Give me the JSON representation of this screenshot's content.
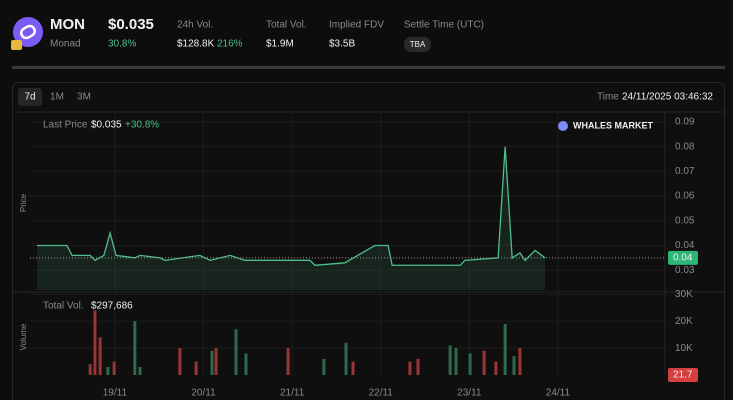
{
  "header": {
    "symbol": "MON",
    "name": "Monad",
    "price": "$0.035",
    "change": "30.8%",
    "stats": [
      {
        "label": "24h Vol.",
        "value": "$128.8K",
        "change": "216%"
      },
      {
        "label": "Total Vol.",
        "value": "$1.9M"
      },
      {
        "label": "Implied FDV",
        "value": "$3.5B"
      },
      {
        "label": "Settle Time (UTC)",
        "value": "TBA"
      }
    ]
  },
  "tabs": [
    "7d",
    "1M",
    "3M"
  ],
  "active_tab": 0,
  "time_label": "Time",
  "time": "24/11/2025 03:46:32",
  "price_chart": {
    "type": "line",
    "legend_label": "Last Price",
    "last_price": "$0.035",
    "last_change": "+30.8%",
    "brand": "WHALES MARKET",
    "y_label": "Price",
    "color": "#4fbf8a",
    "x": [
      2.9,
      11.0,
      12.4,
      17.3,
      18.6,
      21.0,
      22.7,
      24.3,
      29.4,
      30.8,
      36.2,
      37.6,
      47.0,
      49.8,
      55.2,
      59.2,
      76.8,
      78.2,
      86.3,
      94.4,
      98.0,
      99.1,
      117.5,
      118.8,
      127.8,
      129.7,
      131.6,
      133.7,
      135.1,
      137.8,
      140.5
    ],
    "values": [
      0.04,
      0.04,
      0.036,
      0.036,
      0.034,
      0.036,
      0.045,
      0.036,
      0.035,
      0.036,
      0.035,
      0.034,
      0.036,
      0.034,
      0.036,
      0.034,
      0.034,
      0.032,
      0.033,
      0.04,
      0.04,
      0.032,
      0.032,
      0.034,
      0.035,
      0.08,
      0.035,
      0.037,
      0.034,
      0.038,
      0.035
    ],
    "xlim": [
      1,
      173
    ],
    "ylim": [
      0.022,
      0.094
    ],
    "yticks": [
      0.03,
      0.04,
      0.05,
      0.06,
      0.07,
      0.08,
      0.09
    ],
    "xticks": [
      {
        "value": 24,
        "label": "19/11"
      },
      {
        "value": 48,
        "label": "20/11"
      },
      {
        "value": 72,
        "label": "21/11"
      },
      {
        "value": 96,
        "label": "22/11"
      },
      {
        "value": 120,
        "label": "23/11"
      },
      {
        "value": 144,
        "label": "24/11"
      }
    ],
    "current": {
      "value": 0.035,
      "label": "0.04"
    },
    "grid": true
  },
  "volume_chart": {
    "type": "bar",
    "legend_label": "Total Vol.",
    "total": "$297,686",
    "y_label": "Volume",
    "x": [
      17.3,
      18.6,
      20.0,
      22.1,
      23.8,
      29.4,
      30.8,
      41.6,
      46.0,
      50.3,
      51.4,
      56.8,
      59.5,
      70.9,
      80.6,
      86.6,
      88.5,
      103.9,
      106.1,
      114.8,
      116.4,
      120.2,
      124.0,
      127.2,
      129.7,
      132.1,
      133.7
    ],
    "values": [
      4000,
      24000,
      14000,
      3000,
      5000,
      20000,
      3000,
      10000,
      5000,
      9000,
      10000,
      17000,
      8000,
      10000,
      6000,
      12000,
      5000,
      5000,
      6000,
      11000,
      10000,
      8000,
      9000,
      5000,
      19000,
      7000,
      10000
    ],
    "colors": [
      "#9b3535",
      "#9b3535",
      "#9b3535",
      "#2e6b4a",
      "#9b3535",
      "#2e6b4a",
      "#2e6b4a",
      "#9b3535",
      "#9b3535",
      "#2e6b4a",
      "#9b3535",
      "#2e6b4a",
      "#2e6b4a",
      "#9b3535",
      "#2e6b4a",
      "#2e6b4a",
      "#9b3535",
      "#9b3535",
      "#9b3535",
      "#2e6b4a",
      "#2e6b4a",
      "#2e6b4a",
      "#9b3535",
      "#9b3535",
      "#2e6b4a",
      "#2e6b4a",
      "#9b3535"
    ],
    "ylim": [
      0,
      30500
    ],
    "yticks": [
      {
        "value": 10000,
        "label": "10K"
      },
      {
        "value": 20000,
        "label": "20K"
      },
      {
        "value": 30000,
        "label": "30K"
      }
    ],
    "current": 21.7
  }
}
